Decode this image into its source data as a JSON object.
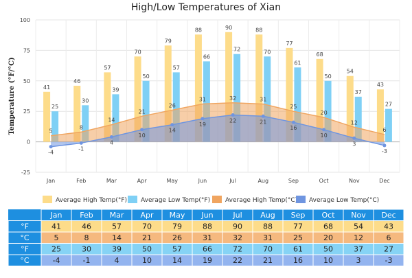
{
  "chart_data": {
    "type": "bar",
    "title": "High/Low Temperatures of Xian",
    "xlabel": "",
    "ylabel": "Temperature (°F/°C)",
    "ylim": [
      -25,
      100
    ],
    "yticks": [
      -25,
      0,
      25,
      50,
      75,
      100
    ],
    "grid": true,
    "legend": "bottom",
    "categories": [
      "Jan",
      "Feb",
      "Mar",
      "Apr",
      "May",
      "Jun",
      "Jul",
      "Aug",
      "Sep",
      "Oct",
      "Nov",
      "Dec"
    ],
    "series": [
      {
        "name": "Average High Temp(°F)",
        "unit": "°F",
        "type": "bar",
        "color": "#fddc8a",
        "label_color": "#f5c15c",
        "values": [
          41,
          46,
          57,
          70,
          79,
          88,
          90,
          88,
          77,
          68,
          54,
          43
        ]
      },
      {
        "name": "Average Low Temp(°F)",
        "unit": "°F",
        "type": "bar",
        "color": "#7fd0f5",
        "label_color": "#5fc0ec",
        "values": [
          25,
          30,
          39,
          50,
          57,
          66,
          72,
          70,
          61,
          50,
          37,
          27
        ]
      },
      {
        "name": "Average High Temp(°C)",
        "unit": "°C",
        "type": "area",
        "color": "#f0a560",
        "values": [
          5,
          8,
          14,
          21,
          26,
          31,
          32,
          31,
          25,
          20,
          12,
          6
        ]
      },
      {
        "name": "Average Low Temp(°C)",
        "unit": "°C",
        "type": "area",
        "color": "#6f95e0",
        "values": [
          -4,
          -1,
          4,
          10,
          14,
          19,
          22,
          21,
          16,
          10,
          3,
          -3
        ]
      }
    ],
    "table": {
      "rows": [
        {
          "label": "°F",
          "series": 0
        },
        {
          "label": "°C",
          "series": 2
        },
        {
          "label": "°F",
          "series": 1
        },
        {
          "label": "°C",
          "series": 3
        }
      ],
      "header_color": "#1e8fe0",
      "row_colors": [
        "#fddc8a",
        "#f5b97f",
        "#86d3f5",
        "#93b4ef"
      ]
    }
  }
}
